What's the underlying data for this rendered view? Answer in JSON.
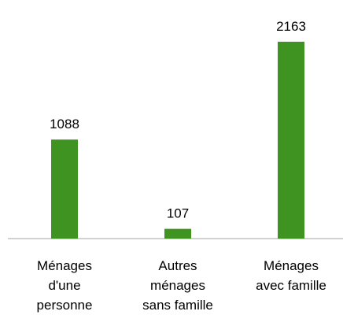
{
  "chart_data": {
    "type": "bar",
    "categories": [
      "Ménages d'une personne",
      "Autres ménages sans famille",
      "Ménages avec famille"
    ],
    "values": [
      1088,
      107,
      2163
    ],
    "color": "#3f9321"
  }
}
